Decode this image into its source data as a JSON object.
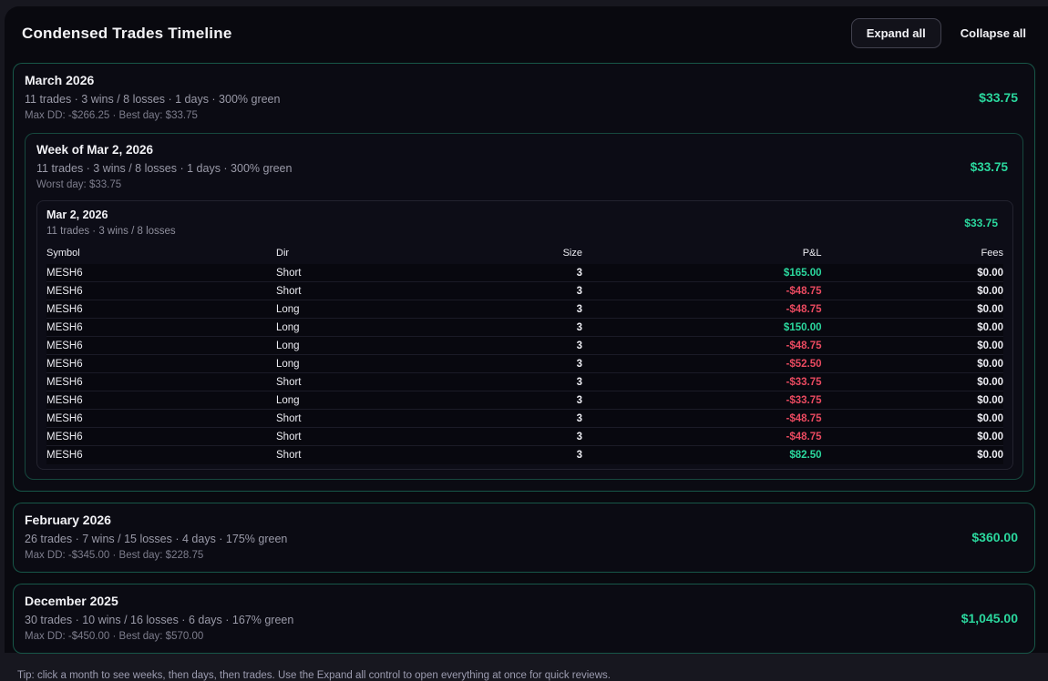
{
  "colors": {
    "green": "#2bd89e",
    "red": "#ea4a60"
  },
  "header": {
    "title": "Condensed Trades Timeline",
    "expand_all": "Expand all",
    "collapse_all": "Collapse all"
  },
  "months": {
    "march": {
      "title": "March 2026",
      "stats": "11 trades · 3 wins / 8 losses · 1 days · 300% green",
      "meta": "Max DD: -$266.25 · Best day: $33.75",
      "pnl": "$33.75"
    },
    "february": {
      "title": "February 2026",
      "stats": "26 trades · 7 wins / 15 losses · 4 days · 175% green",
      "meta": "Max DD: -$345.00 · Best day: $228.75",
      "pnl": "$360.00"
    },
    "december": {
      "title": "December 2025",
      "stats": "30 trades · 10 wins / 16 losses · 6 days · 167% green",
      "meta": "Max DD: -$450.00 · Best day: $570.00",
      "pnl": "$1,045.00"
    }
  },
  "week": {
    "title": "Week of Mar 2, 2026",
    "stats": "11 trades · 3 wins / 8 losses · 1 days · 300% green",
    "meta": "Worst day: $33.75",
    "pnl": "$33.75"
  },
  "day": {
    "title": "Mar 2, 2026",
    "stats": "11 trades · 3 wins / 8 losses",
    "pnl": "$33.75"
  },
  "table": {
    "columns": [
      "Symbol",
      "Dir",
      "Size",
      "P&L",
      "Fees"
    ],
    "rows": [
      {
        "symbol": "MESH6",
        "dir": "Short",
        "size": "3",
        "pnl": "$165.00",
        "pnl_color": "#2bd89e",
        "fees": "$0.00"
      },
      {
        "symbol": "MESH6",
        "dir": "Short",
        "size": "3",
        "pnl": "-$48.75",
        "pnl_color": "#ea4a60",
        "fees": "$0.00"
      },
      {
        "symbol": "MESH6",
        "dir": "Long",
        "size": "3",
        "pnl": "-$48.75",
        "pnl_color": "#ea4a60",
        "fees": "$0.00"
      },
      {
        "symbol": "MESH6",
        "dir": "Long",
        "size": "3",
        "pnl": "$150.00",
        "pnl_color": "#2bd89e",
        "fees": "$0.00"
      },
      {
        "symbol": "MESH6",
        "dir": "Long",
        "size": "3",
        "pnl": "-$48.75",
        "pnl_color": "#ea4a60",
        "fees": "$0.00"
      },
      {
        "symbol": "MESH6",
        "dir": "Long",
        "size": "3",
        "pnl": "-$52.50",
        "pnl_color": "#ea4a60",
        "fees": "$0.00"
      },
      {
        "symbol": "MESH6",
        "dir": "Short",
        "size": "3",
        "pnl": "-$33.75",
        "pnl_color": "#ea4a60",
        "fees": "$0.00"
      },
      {
        "symbol": "MESH6",
        "dir": "Long",
        "size": "3",
        "pnl": "-$33.75",
        "pnl_color": "#ea4a60",
        "fees": "$0.00"
      },
      {
        "symbol": "MESH6",
        "dir": "Short",
        "size": "3",
        "pnl": "-$48.75",
        "pnl_color": "#ea4a60",
        "fees": "$0.00"
      },
      {
        "symbol": "MESH6",
        "dir": "Short",
        "size": "3",
        "pnl": "-$48.75",
        "pnl_color": "#ea4a60",
        "fees": "$0.00"
      },
      {
        "symbol": "MESH6",
        "dir": "Short",
        "size": "3",
        "pnl": "$82.50",
        "pnl_color": "#2bd89e",
        "fees": "$0.00"
      }
    ]
  },
  "tip": "Tip: click a month to see weeks, then days, then trades. Use the Expand all control to open everything at once for quick reviews."
}
